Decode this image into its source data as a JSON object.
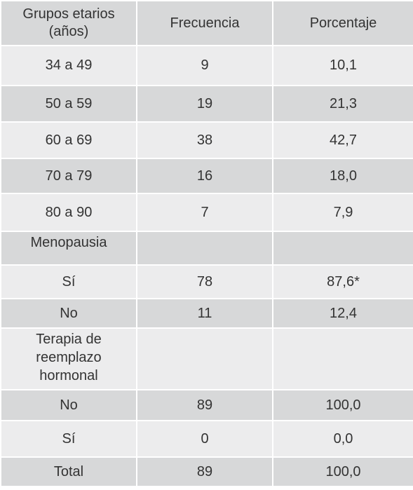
{
  "headers": [
    "Grupos etarios\n(años)",
    "Frecuencia",
    "Porcentaje"
  ],
  "rows": [
    [
      "34 a 49",
      "9",
      "10,1"
    ],
    [
      "50 a 59",
      "19",
      "21,3"
    ],
    [
      "60 a 69",
      "38",
      "42,7"
    ],
    [
      "70 a 79",
      "16",
      "18,0"
    ],
    [
      "80 a 90",
      "7",
      "7,9"
    ],
    [
      "Menopausia",
      "",
      ""
    ],
    [
      "Sí",
      "78",
      "87,6*"
    ],
    [
      "No",
      "11",
      "12,4"
    ],
    [
      "Terapia de\nreemplazo\nhormonal",
      "",
      ""
    ],
    [
      "No",
      "89",
      "100,0"
    ],
    [
      "Sí",
      "0",
      "0,0"
    ],
    [
      "Total",
      "89",
      "100,0"
    ]
  ]
}
